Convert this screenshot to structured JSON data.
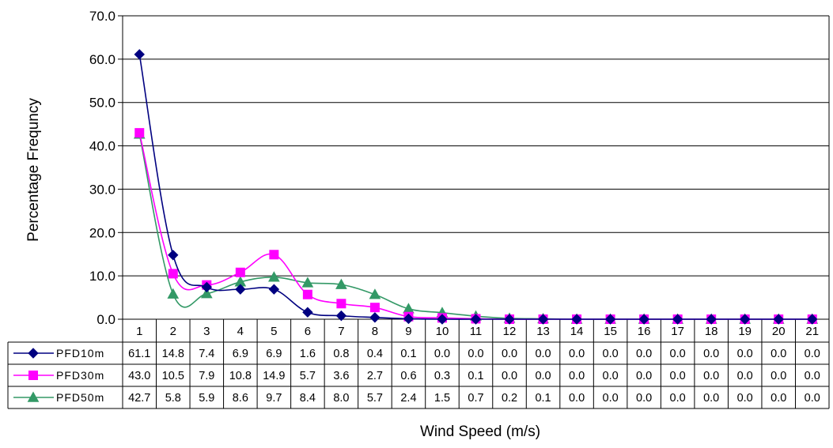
{
  "chart_data": {
    "type": "line",
    "xlabel": "Wind Speed (m/s)",
    "ylabel": "Percentage Frequncy",
    "ylim": [
      0,
      70
    ],
    "yticks": [
      "0.0",
      "10.0",
      "20.0",
      "30.0",
      "40.0",
      "50.0",
      "60.0",
      "70.0"
    ],
    "categories": [
      "1",
      "2",
      "3",
      "4",
      "5",
      "6",
      "7",
      "8",
      "9",
      "10",
      "11",
      "12",
      "13",
      "14",
      "15",
      "16",
      "17",
      "18",
      "19",
      "20",
      "21"
    ],
    "grid": "horizontal",
    "legend": "data-table",
    "series": [
      {
        "name": "PFD10m",
        "color": "#000080",
        "marker": "diamond",
        "values": [
          61.1,
          14.8,
          7.4,
          6.9,
          6.9,
          1.6,
          0.8,
          0.4,
          0.1,
          0.0,
          0.0,
          0.0,
          0.0,
          0.0,
          0.0,
          0.0,
          0.0,
          0.0,
          0.0,
          0.0,
          0.0
        ],
        "labels": [
          "61.1",
          "14.8",
          "7.4",
          "6.9",
          "6.9",
          "1.6",
          "0.8",
          "0.4",
          "0.1",
          "0.0",
          "0.0",
          "0.0",
          "0.0",
          "0.0",
          "0.0",
          "0.0",
          "0.0",
          "0.0",
          "0.0",
          "0.0",
          "0.0"
        ]
      },
      {
        "name": "PFD30m",
        "color": "#FF00FF",
        "marker": "square",
        "values": [
          43.0,
          10.5,
          7.9,
          10.8,
          14.9,
          5.7,
          3.6,
          2.7,
          0.6,
          0.3,
          0.1,
          0.0,
          0.0,
          0.0,
          0.0,
          0.0,
          0.0,
          0.0,
          0.0,
          0.0,
          0.0
        ],
        "labels": [
          "43.0",
          "10.5",
          "7.9",
          "10.8",
          "14.9",
          "5.7",
          "3.6",
          "2.7",
          "0.6",
          "0.3",
          "0.1",
          "0.0",
          "0.0",
          "0.0",
          "0.0",
          "0.0",
          "0.0",
          "0.0",
          "0.0",
          "0.0",
          "0.0"
        ]
      },
      {
        "name": "PFD50m",
        "color": "#339966",
        "marker": "triangle",
        "values": [
          42.7,
          5.8,
          5.9,
          8.6,
          9.7,
          8.4,
          8.0,
          5.7,
          2.4,
          1.5,
          0.7,
          0.2,
          0.1,
          0.0,
          0.0,
          0.0,
          0.0,
          0.0,
          0.0,
          0.0,
          0.0
        ],
        "labels": [
          "42.7",
          "5.8",
          "5.9",
          "8.6",
          "9.7",
          "8.4",
          "8.0",
          "5.7",
          "2.4",
          "1.5",
          "0.7",
          "0.2",
          "0.1",
          "0.0",
          "0.0",
          "0.0",
          "0.0",
          "0.0",
          "0.0",
          "0.0",
          "0.0"
        ]
      }
    ]
  }
}
